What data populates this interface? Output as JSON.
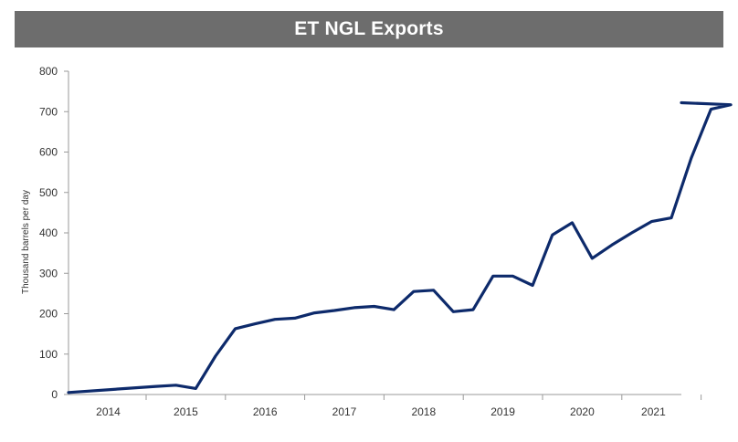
{
  "chart_data": {
    "type": "line",
    "title": "ET NGL Exports",
    "xlabel": "",
    "ylabel": "Thousand barrels per day",
    "ylim": [
      0,
      800
    ],
    "yticks": [
      0,
      100,
      200,
      300,
      400,
      500,
      600,
      700,
      800
    ],
    "categories": [
      "2014",
      "2015",
      "2016",
      "2017",
      "2018",
      "2019",
      "2020",
      "2021"
    ],
    "grid": false,
    "legend": "none",
    "colors": {
      "line": "#0d2a6b",
      "axis": "#9a9a9a",
      "title_bar": "#6d6d6d"
    },
    "series": [
      {
        "x": [
          "2013Q4",
          "2014Q1",
          "2014Q2",
          "2014Q3",
          "2014Q4",
          "2015Q1",
          "2015Q2",
          "2015Q3",
          "2015Q4",
          "2016Q1",
          "2016Q2",
          "2016Q3",
          "2016Q4",
          "2017Q1",
          "2017Q2",
          "2017Q3",
          "2017Q4",
          "2018Q1",
          "2018Q2",
          "2018Q3",
          "2018Q4",
          "2019Q1",
          "2019Q2",
          "2019Q3",
          "2019Q4",
          "2020Q1",
          "2020Q2",
          "2020Q3",
          "2020Q4",
          "2021Q1",
          "2021Q2",
          "2021Q3"
        ],
        "values": [
          5,
          20,
          23,
          15,
          95,
          163,
          175,
          186,
          189,
          202,
          208,
          215,
          218,
          210,
          255,
          258,
          205,
          210,
          293,
          293,
          270,
          395,
          425,
          337,
          370,
          400,
          428,
          437,
          585,
          706,
          717,
          722
        ]
      }
    ]
  }
}
